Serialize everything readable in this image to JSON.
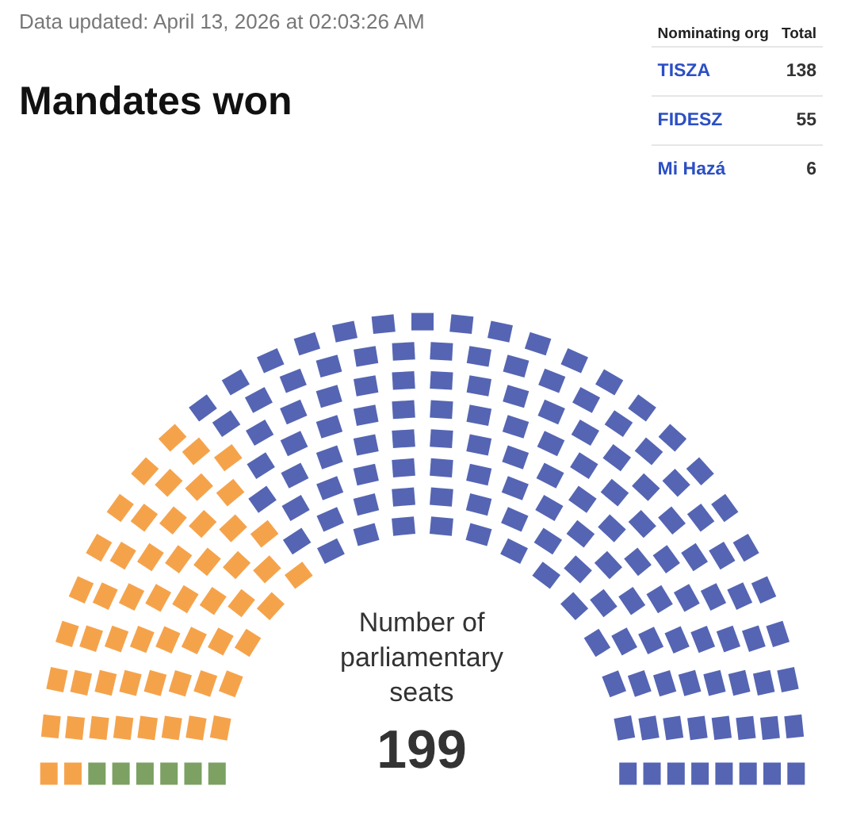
{
  "chart_data": {
    "type": "other",
    "title": "Mandates won",
    "legend_title": "Nominating org",
    "categories": [
      "TISZA",
      "FIDESZ",
      "Mi Hazá"
    ],
    "values": [
      138,
      55,
      6
    ],
    "value_labels": [
      "138",
      "55",
      "6"
    ],
    "colors": [
      "#2b3ea0",
      "#f28c1e",
      "#5b8a3c"
    ],
    "annotations": [
      "Data updated: April 13, 2026 at 02:03:26 AM",
      "Total",
      "Number of parliamentary seats",
      "199"
    ]
  }
}
